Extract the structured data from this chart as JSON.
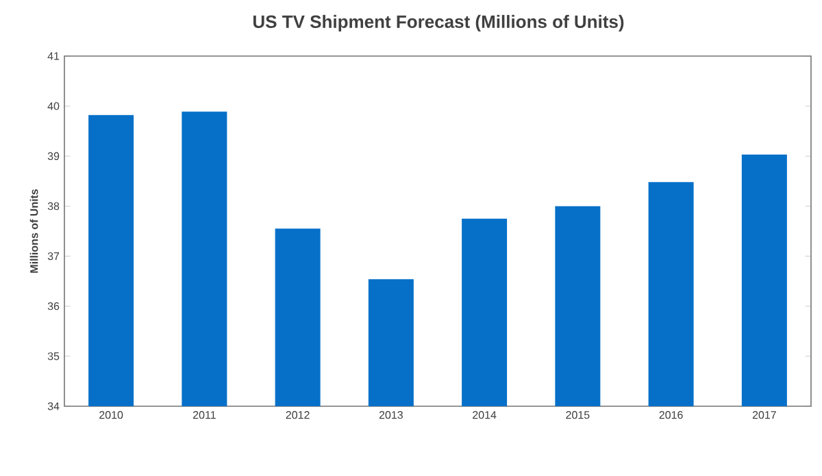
{
  "chart_data": {
    "type": "bar",
    "title": "US TV Shipment Forecast (Millions of Units)",
    "ylabel": "Millions of Units",
    "categories": [
      "2010",
      "2011",
      "2012",
      "2013",
      "2014",
      "2015",
      "2016",
      "2017"
    ],
    "values": [
      39.82,
      39.89,
      37.55,
      36.54,
      37.75,
      38.0,
      38.48,
      39.03
    ],
    "color": "#0670c8",
    "ylim": [
      34,
      41
    ],
    "yticks": [
      34,
      35,
      36,
      37,
      38,
      39,
      40,
      41
    ],
    "grid": false
  }
}
